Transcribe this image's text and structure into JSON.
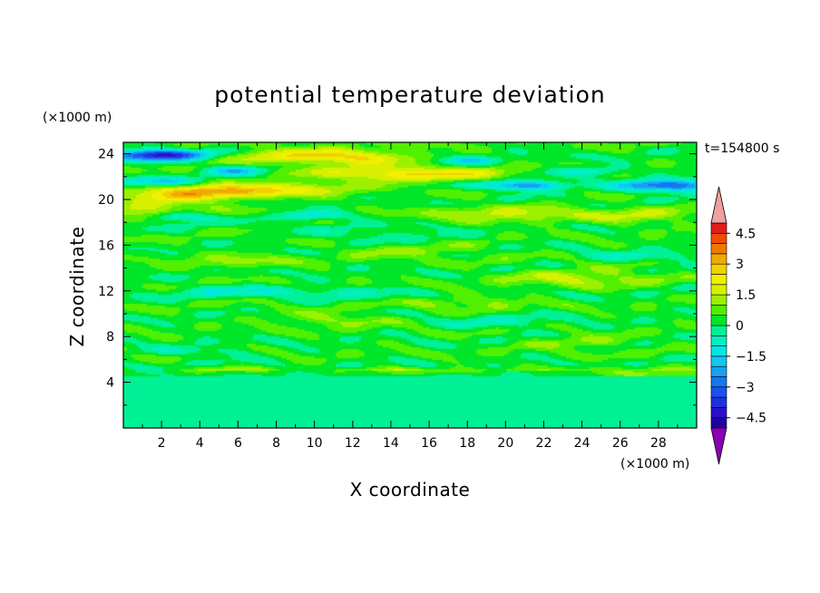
{
  "chart_data": {
    "type": "heatmap",
    "title": "potential temperature deviation",
    "xlabel": "X coordinate",
    "ylabel": "Z coordinate",
    "x_unit": "(×1000 m)",
    "y_unit": "(×1000 m)",
    "time_label": "t=154800 s",
    "xlim": [
      0,
      30
    ],
    "ylim": [
      0,
      25
    ],
    "x_ticks": [
      2,
      4,
      6,
      8,
      10,
      12,
      14,
      16,
      18,
      20,
      22,
      24,
      26,
      28
    ],
    "y_ticks": [
      4,
      8,
      12,
      16,
      20,
      24
    ],
    "colorbar": {
      "levels": [
        -5,
        -4.5,
        -4,
        -3.5,
        -3,
        -2.5,
        -2,
        -1.5,
        -1,
        -0.5,
        0,
        0.5,
        1,
        1.5,
        2,
        2.5,
        3,
        3.5,
        4,
        4.5,
        5
      ],
      "tick_labels": [
        "4.5",
        "3",
        "1.5",
        "0",
        "−1.5",
        "−3",
        "−4.5"
      ],
      "tick_values": [
        4.5,
        3,
        1.5,
        0,
        -1.5,
        -3,
        -4.5
      ],
      "colors": [
        "#1f00a0",
        "#2b10c8",
        "#2030e0",
        "#1c50f0",
        "#1478f0",
        "#16a0f0",
        "#10c8f0",
        "#00e6e6",
        "#00f0c0",
        "#00f096",
        "#00e628",
        "#50f000",
        "#9cf000",
        "#d8f000",
        "#f0f000",
        "#f0d200",
        "#f0aa00",
        "#f07800",
        "#f04b00",
        "#e01e1e"
      ],
      "over_color": "#f0a0a0",
      "under_color": "#8c00b4"
    }
  }
}
